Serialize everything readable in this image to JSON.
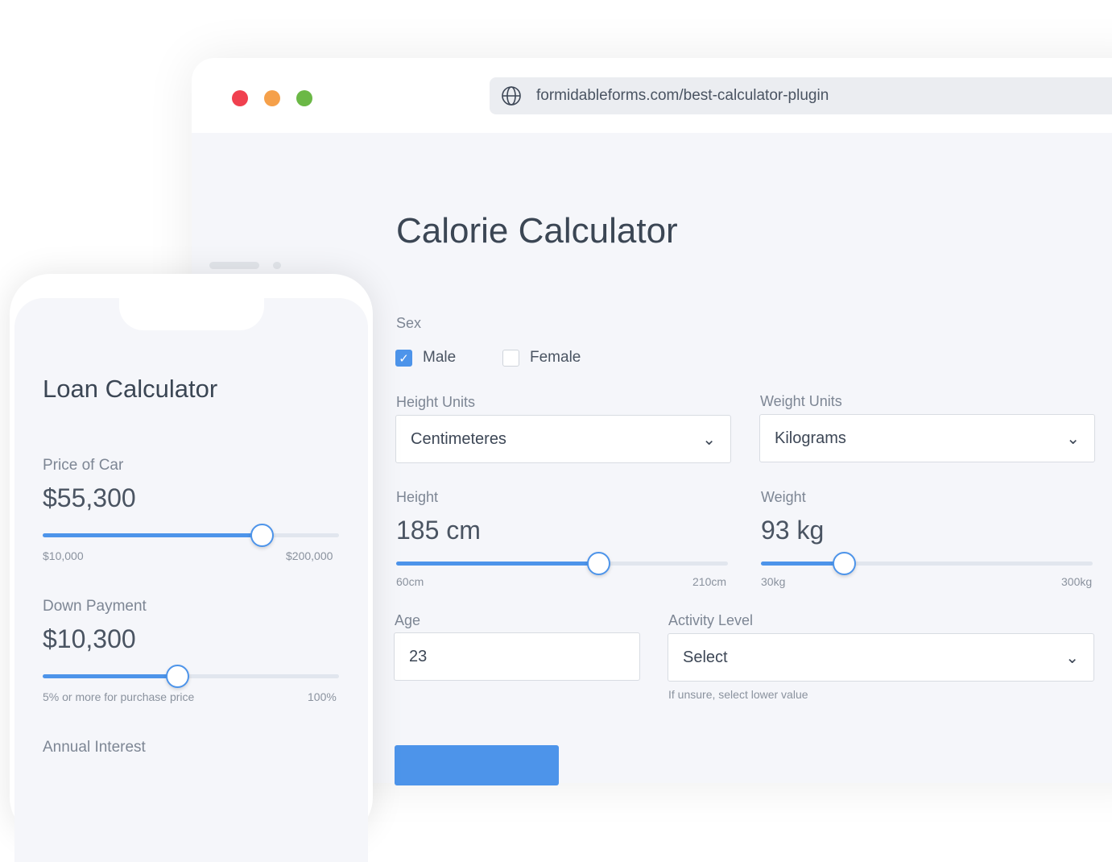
{
  "browser": {
    "url": "formidableforms.com/best-calculator-plugin",
    "dots": {
      "red": "#f0404f",
      "orange": "#f5a04a",
      "green": "#6bb846"
    }
  },
  "calorie": {
    "title": "Calorie Calculator",
    "sex_label": "Sex",
    "male": "Male",
    "male_checked": true,
    "female": "Female",
    "female_checked": false,
    "height_units_label": "Height  Units",
    "height_units_value": "Centimeteres",
    "weight_units_label": "Weight  Units",
    "weight_units_value": "Kilograms",
    "height_label": "Height",
    "height_value": "185 cm",
    "height_min": "60cm",
    "height_max": "210cm",
    "height_fill": 0.61,
    "weight_label": "Weight",
    "weight_value": "93 kg",
    "weight_min": "30kg",
    "weight_max": "300kg",
    "weight_fill": 0.25,
    "age_label": "Age",
    "age_value": "23",
    "activity_label": "Activity Level",
    "activity_value": "Select",
    "activity_hint": "If unsure, select lower value"
  },
  "loan": {
    "title": "Loan Calculator",
    "price_label": "Price of Car",
    "price_value": "$55,300",
    "price_min": "$10,000",
    "price_max": "$200,000",
    "price_fill": 0.74,
    "down_label": "Down Payment",
    "down_value": "$10,300",
    "down_min": "5% or more for purchase price",
    "down_max": "100%",
    "down_fill": 0.455,
    "interest_label": "Annual Interest"
  },
  "accent": "#4d94ea"
}
